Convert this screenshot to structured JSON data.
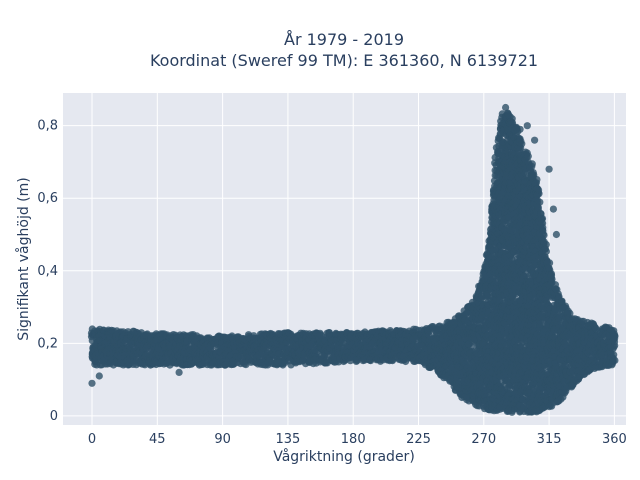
{
  "chart_data": {
    "type": "scatter",
    "title_line1": "År 1979 - 2019",
    "title_line2": "Koordinat (Sweref 99 TM): E 361360, N 6139721",
    "xlabel": "Vågriktning (grader)",
    "ylabel": "Signifikant våghöjd (m)",
    "xlim": [
      -20,
      368
    ],
    "ylim": [
      -0.025,
      0.89
    ],
    "x_ticks": [
      0,
      45,
      90,
      135,
      180,
      225,
      270,
      315,
      360
    ],
    "x_tick_labels": [
      "0",
      "45",
      "90",
      "135",
      "180",
      "225",
      "270",
      "315",
      "360"
    ],
    "y_ticks": [
      0,
      0.2,
      0.4,
      0.6,
      0.8
    ],
    "y_tick_labels": [
      "0",
      "0,2",
      "0,4",
      "0,6",
      "0,8"
    ],
    "grid": true,
    "marker_color": "#2e5068",
    "plot_background": "#e5e8f0",
    "series": [
      {
        "description_envelope": "dense point cloud",
        "band_low": [
          [
            0,
            0.14
          ],
          [
            45,
            0.14
          ],
          [
            90,
            0.14
          ],
          [
            135,
            0.14
          ],
          [
            180,
            0.15
          ],
          [
            225,
            0.15
          ],
          [
            245,
            0.1
          ],
          [
            255,
            0.05
          ],
          [
            265,
            0.03
          ],
          [
            275,
            0.01
          ],
          [
            290,
            0.01
          ],
          [
            305,
            0.01
          ],
          [
            315,
            0.02
          ],
          [
            325,
            0.05
          ],
          [
            335,
            0.1
          ],
          [
            345,
            0.13
          ],
          [
            360,
            0.14
          ]
        ],
        "band_high": [
          [
            0,
            0.24
          ],
          [
            45,
            0.23
          ],
          [
            90,
            0.22
          ],
          [
            135,
            0.23
          ],
          [
            180,
            0.23
          ],
          [
            225,
            0.24
          ],
          [
            240,
            0.25
          ],
          [
            255,
            0.28
          ],
          [
            265,
            0.33
          ],
          [
            270,
            0.4
          ],
          [
            275,
            0.52
          ],
          [
            278,
            0.72
          ],
          [
            282,
            0.83
          ],
          [
            286,
            0.84
          ],
          [
            292,
            0.8
          ],
          [
            298,
            0.75
          ],
          [
            303,
            0.7
          ],
          [
            308,
            0.63
          ],
          [
            312,
            0.5
          ],
          [
            316,
            0.4
          ],
          [
            322,
            0.33
          ],
          [
            330,
            0.28
          ],
          [
            340,
            0.26
          ],
          [
            350,
            0.25
          ],
          [
            360,
            0.24
          ]
        ],
        "outliers": [
          [
            0,
            0.09
          ],
          [
            5,
            0.11
          ],
          [
            60,
            0.12
          ],
          [
            285,
            0.85
          ],
          [
            287,
            0.83
          ],
          [
            300,
            0.8
          ],
          [
            295,
            0.79
          ],
          [
            305,
            0.76
          ],
          [
            315,
            0.68
          ],
          [
            318,
            0.57
          ],
          [
            320,
            0.5
          ]
        ]
      }
    ]
  }
}
